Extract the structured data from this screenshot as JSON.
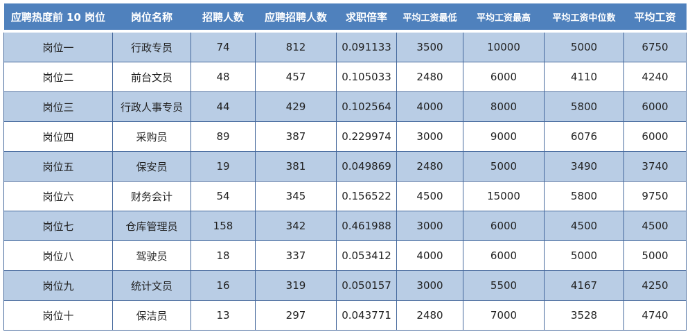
{
  "colors": {
    "header": "#4f81bd",
    "band": "#b9cde5",
    "border": "#41659a"
  },
  "headers": [
    "应聘热度前 10 岗位",
    "岗位名称",
    "招聘人数",
    "应聘招聘人数",
    "求职倍率",
    "平均工资最低",
    "平均工资最高",
    "平均工资中位数",
    "平均工资"
  ],
  "rows": [
    [
      "岗位一",
      "行政专员",
      "74",
      "812",
      "0.091133",
      "3500",
      "10000",
      "5000",
      "6750"
    ],
    [
      "岗位二",
      "前台文员",
      "48",
      "457",
      "0.105033",
      "2480",
      "6000",
      "4110",
      "4240"
    ],
    [
      "岗位三",
      "行政人事专员",
      "44",
      "429",
      "0.102564",
      "4000",
      "8000",
      "5800",
      "6000"
    ],
    [
      "岗位四",
      "采购员",
      "89",
      "387",
      "0.229974",
      "3000",
      "9000",
      "6076",
      "6000"
    ],
    [
      "岗位五",
      "保安员",
      "19",
      "381",
      "0.049869",
      "2480",
      "5000",
      "3490",
      "3740"
    ],
    [
      "岗位六",
      "财务会计",
      "54",
      "345",
      "0.156522",
      "4500",
      "15000",
      "5800",
      "9750"
    ],
    [
      "岗位七",
      "仓库管理员",
      "158",
      "342",
      "0.461988",
      "3000",
      "6000",
      "4500",
      "4500"
    ],
    [
      "岗位八",
      "驾驶员",
      "18",
      "337",
      "0.053412",
      "4000",
      "6000",
      "5000",
      "5000"
    ],
    [
      "岗位九",
      "统计文员",
      "16",
      "319",
      "0.050157",
      "3000",
      "5500",
      "4167",
      "4250"
    ],
    [
      "岗位十",
      "保洁员",
      "13",
      "297",
      "0.043771",
      "2480",
      "7000",
      "3528",
      "4740"
    ]
  ]
}
